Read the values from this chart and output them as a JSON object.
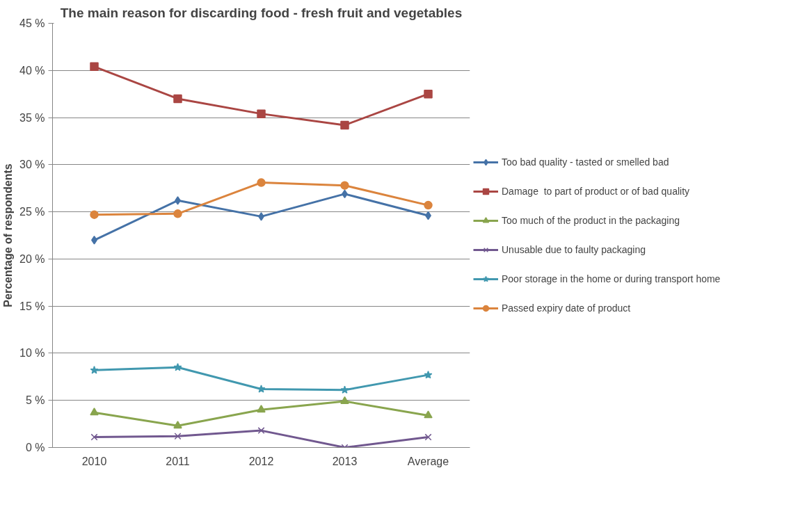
{
  "chart_data": {
    "type": "line",
    "title": "The main reason for discarding food - fresh fruit and vegetables",
    "ylabel": "Percentage of respondents",
    "categories": [
      "2010",
      "2011",
      "2012",
      "2013",
      "Average"
    ],
    "series": [
      {
        "name": "Too bad quality - tasted or smelled bad",
        "color": "#4572a7",
        "marker": "diamond",
        "values": [
          22.0,
          26.2,
          24.5,
          26.9,
          24.6
        ]
      },
      {
        "name": "Damage  to part of product or of bad quality",
        "color": "#aa4643",
        "marker": "square",
        "values": [
          40.4,
          37.0,
          35.4,
          34.2,
          37.5
        ]
      },
      {
        "name": "Too much of the product in the packaging",
        "color": "#89a54e",
        "marker": "triangle",
        "values": [
          3.7,
          2.3,
          4.0,
          4.9,
          3.4
        ]
      },
      {
        "name": "Unusable due to faulty packaging",
        "color": "#71588f",
        "marker": "cross",
        "values": [
          1.1,
          1.2,
          1.8,
          0.0,
          1.1
        ]
      },
      {
        "name": "Poor storage in the home or during transport home",
        "color": "#4198af",
        "marker": "star",
        "values": [
          8.2,
          8.5,
          6.2,
          6.1,
          7.7
        ]
      },
      {
        "name": "Passed expiry date of product",
        "color": "#db843d",
        "marker": "circle",
        "values": [
          24.7,
          24.8,
          28.1,
          27.8,
          25.7
        ]
      }
    ],
    "ylim": [
      0,
      45
    ],
    "yticks": [
      {
        "value": 0,
        "label": "0 %"
      },
      {
        "value": 5,
        "label": "5 %"
      },
      {
        "value": 10,
        "label": "10 %"
      },
      {
        "value": 15,
        "label": "15 %"
      },
      {
        "value": 20,
        "label": "20 %"
      },
      {
        "value": 25,
        "label": "25 %"
      },
      {
        "value": 30,
        "label": "30 %"
      },
      {
        "value": 35,
        "label": "35 %"
      },
      {
        "value": 40,
        "label": "40 %"
      },
      {
        "value": 45,
        "label": "45 %"
      }
    ],
    "grid": "y",
    "legend": "right",
    "line_style": "solid"
  }
}
